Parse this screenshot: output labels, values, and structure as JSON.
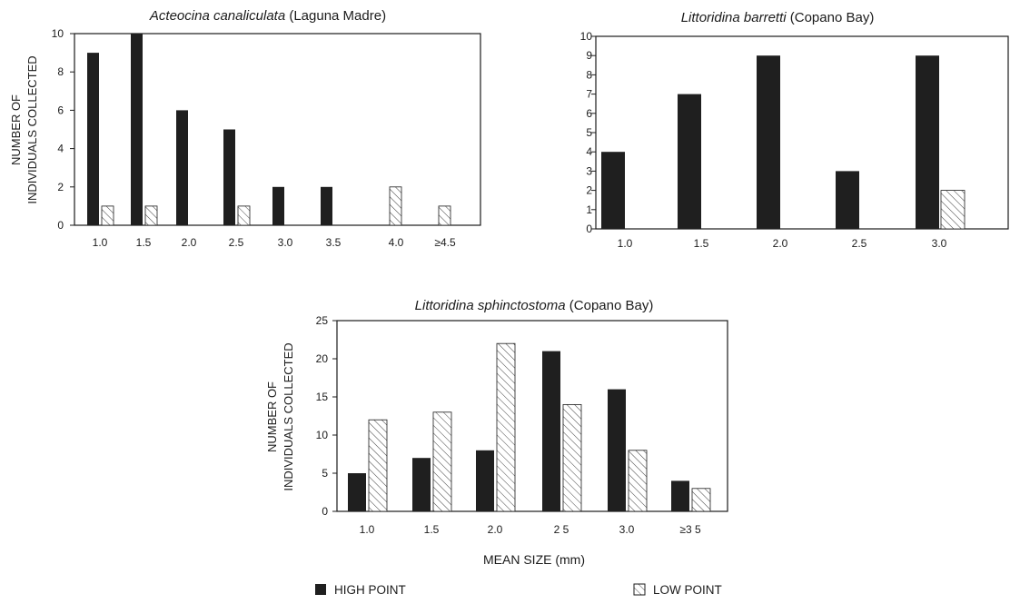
{
  "colors": {
    "background": "#ffffff",
    "high": "#1f1f1f",
    "low_hatch": "#444444",
    "ink": "#1b1b1b"
  },
  "shared": {
    "ylabel_line1": "NUMBER OF",
    "ylabel_line2": "INDIVIDUALS COLLECTED",
    "xlabel": "MEAN SIZE  (mm)",
    "legend_high": "HIGH POINT",
    "legend_low": "LOW POINT"
  },
  "chart_data": [
    {
      "type": "bar",
      "title_species": "Acteocina canaliculata",
      "title_location": " (Laguna Madre)",
      "categories": [
        "1.0",
        "1.5",
        "2.0",
        "2.5",
        "3.0",
        "3.5",
        "4.0",
        "≥4.5"
      ],
      "series": [
        {
          "name": "HIGH POINT",
          "values": [
            9,
            10,
            6,
            5,
            2,
            2,
            0,
            0
          ]
        },
        {
          "name": "LOW POINT",
          "values": [
            1,
            1,
            0,
            1,
            0,
            0,
            2,
            1
          ]
        }
      ],
      "ylim": [
        0,
        10
      ],
      "yticks": [
        0,
        2,
        4,
        6,
        8,
        10
      ],
      "grid": false
    },
    {
      "type": "bar",
      "title_species": "Littoridina barretti",
      "title_location": " (Copano Bay)",
      "categories": [
        "1.0",
        "1.5",
        "2.0",
        "2.5",
        "3.0"
      ],
      "series": [
        {
          "name": "HIGH POINT",
          "values": [
            4,
            7,
            9,
            3,
            9
          ]
        },
        {
          "name": "LOW POINT",
          "values": [
            0,
            0,
            0,
            0,
            2
          ]
        }
      ],
      "ylim": [
        0,
        10
      ],
      "yticks": [
        0,
        1,
        2,
        3,
        4,
        5,
        6,
        7,
        8,
        9,
        10
      ],
      "grid": false
    },
    {
      "type": "bar",
      "title_species": "Littoridina sphinctostoma",
      "title_location": " (Copano Bay)",
      "categories": [
        "1.0",
        "1.5",
        "2.0",
        "2 5",
        "3.0",
        "≥3 5"
      ],
      "series": [
        {
          "name": "HIGH POINT",
          "values": [
            5,
            7,
            8,
            21,
            16,
            4
          ]
        },
        {
          "name": "LOW POINT",
          "values": [
            12,
            13,
            22,
            14,
            8,
            3
          ]
        }
      ],
      "ylim": [
        0,
        25
      ],
      "yticks": [
        0,
        5,
        10,
        15,
        20,
        25
      ],
      "grid": false
    }
  ]
}
